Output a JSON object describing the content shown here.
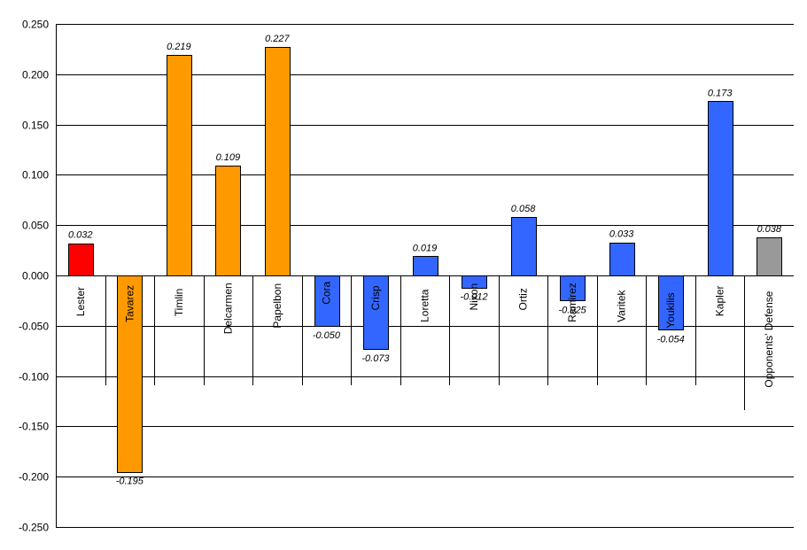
{
  "chart_data": {
    "type": "bar",
    "title": "",
    "xlabel": "",
    "ylabel": "",
    "ylim": [
      -0.25,
      0.25
    ],
    "yticks": [
      0.25,
      0.2,
      0.15,
      0.1,
      0.05,
      0.0,
      -0.05,
      -0.1,
      -0.15,
      -0.2,
      -0.25
    ],
    "ytick_labels": [
      "0.250",
      "0.200",
      "0.150",
      "0.100",
      "0.050",
      "0.000",
      "-0.050",
      "-0.100",
      "-0.150",
      "-0.200",
      "-0.250"
    ],
    "grid": true,
    "categories": [
      "Lester",
      "Tavarez",
      "Timlin",
      "Delcarmen",
      "Papelbon",
      "Cora",
      "Crisp",
      "Loretta",
      "Nixon",
      "Ortiz",
      "Ramirez",
      "Varitek",
      "Youkilis",
      "Kapler",
      "Opponents' Defense"
    ],
    "values": [
      0.032,
      -0.195,
      0.219,
      0.109,
      0.227,
      -0.05,
      -0.073,
      0.019,
      -0.012,
      0.058,
      -0.025,
      0.033,
      -0.054,
      0.173,
      0.038
    ],
    "value_labels": [
      "0.032",
      "-0.195",
      "0.219",
      "0.109",
      "0.227",
      "-0.050",
      "-0.073",
      "0.019",
      "-0.012",
      "0.058",
      "-0.025",
      "0.033",
      "-0.054",
      "0.173",
      "0.038"
    ],
    "colors": [
      "#ff0000",
      "#ff9900",
      "#ff9900",
      "#ff9900",
      "#ff9900",
      "#3366ff",
      "#3366ff",
      "#3366ff",
      "#3366ff",
      "#3366ff",
      "#3366ff",
      "#3366ff",
      "#3366ff",
      "#3366ff",
      "#999999"
    ]
  }
}
